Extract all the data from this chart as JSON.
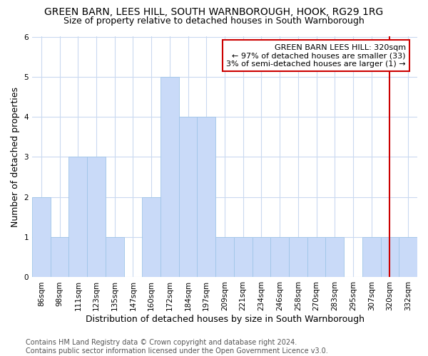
{
  "title": "GREEN BARN, LEES HILL, SOUTH WARNBOROUGH, HOOK, RG29 1RG",
  "subtitle": "Size of property relative to detached houses in South Warnborough",
  "xlabel": "Distribution of detached houses by size in South Warnborough",
  "ylabel": "Number of detached properties",
  "categories": [
    "86sqm",
    "98sqm",
    "111sqm",
    "123sqm",
    "135sqm",
    "147sqm",
    "160sqm",
    "172sqm",
    "184sqm",
    "197sqm",
    "209sqm",
    "221sqm",
    "234sqm",
    "246sqm",
    "258sqm",
    "270sqm",
    "283sqm",
    "295sqm",
    "307sqm",
    "320sqm",
    "332sqm"
  ],
  "values": [
    2,
    1,
    3,
    3,
    1,
    0,
    2,
    5,
    4,
    4,
    1,
    1,
    1,
    1,
    1,
    1,
    1,
    0,
    1,
    1,
    1
  ],
  "bar_color": "#c9daf8",
  "bar_edge_color": "#9fc5e8",
  "marker_index": 19,
  "marker_line_color": "#cc0000",
  "annotation_text": "GREEN BARN LEES HILL: 320sqm\n← 97% of detached houses are smaller (33)\n3% of semi-detached houses are larger (1) →",
  "annotation_box_color": "#cc0000",
  "ylim": [
    0,
    6
  ],
  "yticks": [
    0,
    1,
    2,
    3,
    4,
    5,
    6
  ],
  "footnote": "Contains HM Land Registry data © Crown copyright and database right 2024.\nContains public sector information licensed under the Open Government Licence v3.0.",
  "background_color": "#ffffff",
  "plot_bg_color": "#ffffff",
  "grid_color": "#c9d9f0",
  "title_fontsize": 10,
  "subtitle_fontsize": 9,
  "axis_label_fontsize": 9,
  "tick_fontsize": 7.5,
  "footnote_fontsize": 7,
  "annotation_fontsize": 8
}
